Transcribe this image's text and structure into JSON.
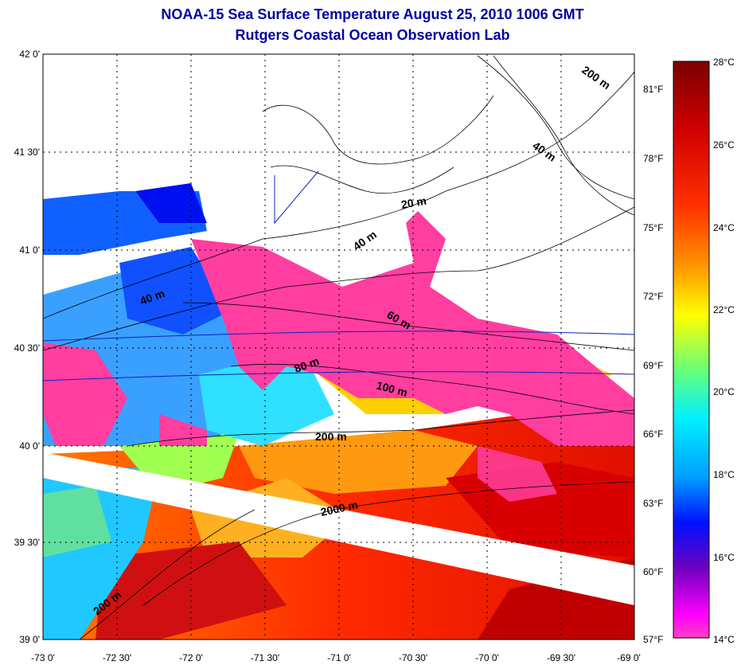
{
  "title": {
    "line1": "NOAA-15 Sea Surface Temperature August 25, 2010 1006 GMT",
    "line2": "Rutgers Coastal Ocean Observation Lab"
  },
  "axes": {
    "lat_labels": [
      "42 0'",
      "41 30'",
      "41 0'",
      "40 30'",
      "40 0'",
      "39 30'",
      "39 0'"
    ],
    "lon_labels": [
      "-73 0'",
      "-72 30'",
      "-72 0'",
      "-71 30'",
      "-71 0'",
      "-70 30'",
      "-70 0'",
      "-69 30'",
      "-69 0'"
    ],
    "fahrenheit_labels": [
      "81°F",
      "78°F",
      "75°F",
      "72°F",
      "69°F",
      "66°F",
      "63°F",
      "60°F",
      "57°F"
    ]
  },
  "colorbar": {
    "celsius_labels": [
      "28°C",
      "26°C",
      "24°C",
      "22°C",
      "20°C",
      "18°C",
      "16°C",
      "14°C"
    ],
    "colors": [
      "#800000",
      "#d00000",
      "#ff4000",
      "#ff9900",
      "#ffff00",
      "#80ff60",
      "#00ffff",
      "#00a0ff",
      "#0000ff",
      "#8000c0",
      "#ff00ff",
      "#ff60c0"
    ]
  },
  "contour_labels": [
    "200 m",
    "40 m",
    "20 m",
    "40 m",
    "40 m",
    "60 m",
    "80 m",
    "100 m",
    "200 m",
    "2000 m",
    "200 m"
  ],
  "colors": {
    "title": "#0000a0",
    "cloud_mask": "#ff3ea0",
    "grid": "#000000"
  }
}
